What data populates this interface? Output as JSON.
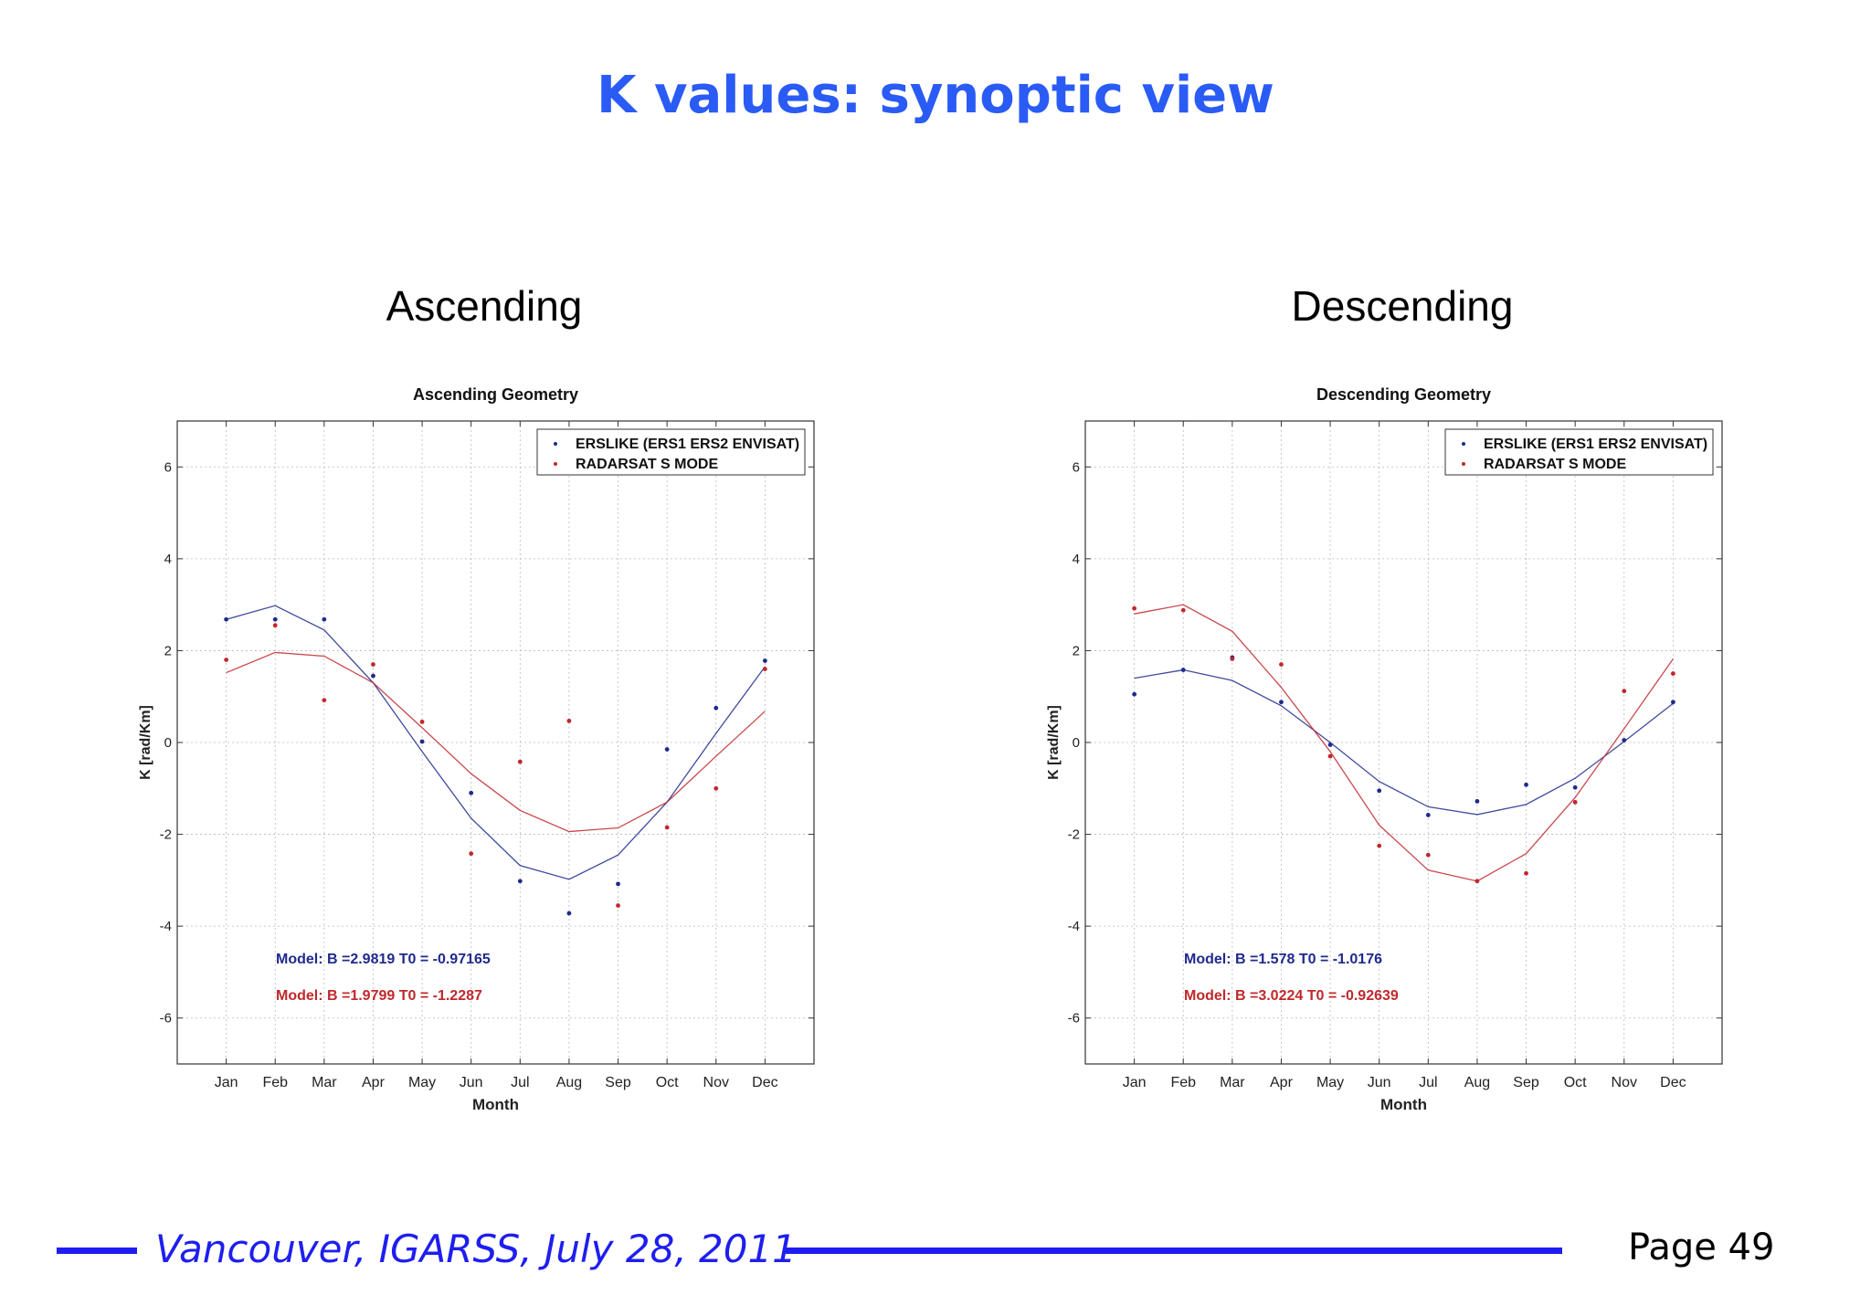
{
  "slide": {
    "title": "K values: synoptic view",
    "footer_venue": "Vancouver, IGARSS, July 28, 2011",
    "footer_page": "Page 49"
  },
  "panels": {
    "ascending_heading": "Ascending",
    "descending_heading": "Descending"
  },
  "colors": {
    "title": "#2a5bf5",
    "series_blue": "#1f2a8c",
    "series_red": "#c0282b",
    "footer": "#1e1ef0"
  },
  "chart_data": [
    {
      "type": "scatter",
      "title": "Ascending Geometry",
      "xlabel": "Month",
      "ylabel": "K [rad/Km]",
      "categories": [
        "Jan",
        "Feb",
        "Mar",
        "Apr",
        "May",
        "Jun",
        "Jul",
        "Aug",
        "Sep",
        "Oct",
        "Nov",
        "Dec"
      ],
      "yticks": [
        "6",
        "4",
        "2",
        "0",
        "-2",
        "-4",
        "-6"
      ],
      "ylim": [
        -7,
        7
      ],
      "grid": true,
      "legend": "top-right",
      "series": [
        {
          "name": "ERSLIKE (ERS1 ERS2 ENVISAT)",
          "color": "#1f2a8c",
          "points": [
            2.68,
            2.68,
            2.68,
            1.45,
            0.02,
            -1.1,
            -3.02,
            -3.72,
            -3.08,
            -0.15,
            0.75,
            1.78
          ],
          "model": [
            2.68,
            2.98,
            2.45,
            1.3,
            -0.2,
            -1.65,
            -2.68,
            -2.98,
            -2.45,
            -1.3,
            0.2,
            1.65
          ]
        },
        {
          "name": "RADARSAT S MODE",
          "color": "#c0282b",
          "points": [
            1.8,
            2.55,
            0.92,
            1.7,
            0.45,
            -2.42,
            -0.42,
            0.47,
            -3.55,
            -1.85,
            -1.0,
            1.6
          ],
          "model": [
            1.52,
            1.96,
            1.88,
            1.3,
            0.32,
            -0.68,
            -1.48,
            -1.94,
            -1.86,
            -1.3,
            -0.3,
            0.68
          ]
        }
      ],
      "annotations": [
        {
          "text": "Model: B =2.9819  T0 = -0.97165",
          "color": "#1f2a8c"
        },
        {
          "text": "Model: B =1.9799  T0 = -1.2287",
          "color": "#c0282b"
        }
      ]
    },
    {
      "type": "scatter",
      "title": "Descending Geometry",
      "xlabel": "Month",
      "ylabel": "K [rad/Km]",
      "categories": [
        "Jan",
        "Feb",
        "Mar",
        "Apr",
        "May",
        "Jun",
        "Jul",
        "Aug",
        "Sep",
        "Oct",
        "Nov",
        "Dec"
      ],
      "yticks": [
        "6",
        "4",
        "2",
        "0",
        "-2",
        "-4",
        "-6"
      ],
      "ylim": [
        -7,
        7
      ],
      "grid": true,
      "legend": "top-right",
      "series": [
        {
          "name": "ERSLIKE (ERS1 ERS2 ENVISAT)",
          "color": "#1f2a8c",
          "points": [
            1.05,
            1.58,
            1.85,
            0.88,
            -0.05,
            -1.05,
            -1.58,
            -1.28,
            -0.92,
            -0.98,
            0.05,
            0.88
          ],
          "model": [
            1.4,
            1.58,
            1.35,
            0.8,
            0.0,
            -0.85,
            -1.4,
            -1.57,
            -1.35,
            -0.78,
            0.02,
            0.85
          ]
        },
        {
          "name": "RADARSAT S MODE",
          "color": "#c0282b",
          "points": [
            2.92,
            2.88,
            1.82,
            1.7,
            -0.3,
            -2.25,
            -2.45,
            -3.02,
            -2.85,
            -1.3,
            1.12,
            1.5
          ],
          "model": [
            2.8,
            3.0,
            2.42,
            1.2,
            -0.2,
            -1.8,
            -2.78,
            -3.02,
            -2.42,
            -1.2,
            0.3,
            1.82
          ]
        }
      ],
      "annotations": [
        {
          "text": "Model: B =1.578   T0 = -1.0176",
          "color": "#1f2a8c"
        },
        {
          "text": "Model: B =3.0224  T0 = -0.92639",
          "color": "#c0282b"
        }
      ]
    }
  ]
}
